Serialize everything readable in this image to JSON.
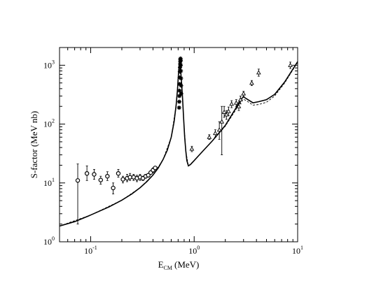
{
  "chart_data": {
    "type": "scatter",
    "xlabel": {
      "main": "E",
      "sub": "CM",
      "unit": "(MeV)"
    },
    "ylabel": "S-factor (MeV nb)",
    "xscale": "log",
    "yscale": "log",
    "xlim": [
      0.05,
      10
    ],
    "ylim": [
      1,
      2000
    ],
    "x_ticks": [
      {
        "value": 0.1,
        "base": "10",
        "exp": "-1"
      },
      {
        "value": 1,
        "base": "10",
        "exp": "0"
      },
      {
        "value": 10,
        "base": "10",
        "exp": "1"
      }
    ],
    "y_ticks": [
      {
        "value": 1,
        "base": "10",
        "exp": "0"
      },
      {
        "value": 10,
        "base": "10",
        "exp": "1"
      },
      {
        "value": 100,
        "base": "10",
        "exp": "2"
      },
      {
        "value": 1000,
        "base": "10",
        "exp": "3"
      }
    ],
    "grid": false,
    "legend": "none",
    "curves": [
      {
        "style": "solid",
        "points": [
          [
            0.05,
            1.85
          ],
          [
            0.07,
            2.2
          ],
          [
            0.1,
            2.85
          ],
          [
            0.15,
            3.9
          ],
          [
            0.2,
            5.1
          ],
          [
            0.25,
            6.5
          ],
          [
            0.3,
            8.3
          ],
          [
            0.35,
            10.6
          ],
          [
            0.4,
            13.6
          ],
          [
            0.45,
            18
          ],
          [
            0.5,
            25
          ],
          [
            0.55,
            36
          ],
          [
            0.6,
            60
          ],
          [
            0.64,
            110
          ],
          [
            0.67,
            210
          ],
          [
            0.69,
            380
          ],
          [
            0.705,
            700
          ],
          [
            0.715,
            1000
          ],
          [
            0.725,
            1100
          ],
          [
            0.735,
            950
          ],
          [
            0.75,
            600
          ],
          [
            0.77,
            300
          ],
          [
            0.79,
            130
          ],
          [
            0.81,
            60
          ],
          [
            0.83,
            35
          ],
          [
            0.85,
            24
          ],
          [
            0.88,
            19.5
          ],
          [
            0.92,
            20.5
          ],
          [
            1.0,
            24
          ],
          [
            1.2,
            34
          ],
          [
            1.5,
            52
          ],
          [
            2.0,
            95
          ],
          [
            2.5,
            180
          ],
          [
            2.8,
            260
          ],
          [
            3.0,
            290
          ],
          [
            3.3,
            260
          ],
          [
            3.7,
            230
          ],
          [
            4.2,
            240
          ],
          [
            5.0,
            260
          ],
          [
            6.0,
            320
          ],
          [
            7.5,
            520
          ],
          [
            10.0,
            1150
          ]
        ]
      },
      {
        "style": "dashed",
        "points": [
          [
            0.05,
            1.85
          ],
          [
            0.1,
            2.85
          ],
          [
            0.2,
            5.1
          ],
          [
            0.3,
            8.3
          ],
          [
            0.4,
            13.6
          ],
          [
            0.5,
            25
          ],
          [
            0.6,
            60
          ],
          [
            0.67,
            210
          ],
          [
            0.705,
            700
          ],
          [
            0.725,
            1100
          ],
          [
            0.75,
            600
          ],
          [
            0.79,
            130
          ],
          [
            0.83,
            35
          ],
          [
            0.88,
            19.5
          ],
          [
            1.0,
            24
          ],
          [
            1.5,
            52
          ],
          [
            2.0,
            92
          ],
          [
            2.5,
            170
          ],
          [
            2.8,
            240
          ],
          [
            3.0,
            265
          ],
          [
            3.3,
            240
          ],
          [
            3.7,
            210
          ],
          [
            4.2,
            215
          ],
          [
            5.0,
            235
          ],
          [
            6.0,
            300
          ],
          [
            7.5,
            500
          ],
          [
            10.0,
            1120
          ]
        ]
      }
    ],
    "series": [
      {
        "marker": "circle",
        "points": [
          {
            "x": 0.075,
            "y": 11,
            "ylo": 2,
            "yhi": 21
          },
          {
            "x": 0.092,
            "y": 14.5,
            "ylo": 11,
            "yhi": 19.5
          },
          {
            "x": 0.108,
            "y": 14,
            "ylo": 11.5,
            "yhi": 17
          },
          {
            "x": 0.125,
            "y": 11.2,
            "ylo": 9.5,
            "yhi": 13
          },
          {
            "x": 0.145,
            "y": 13,
            "ylo": 11,
            "yhi": 15.5
          },
          {
            "x": 0.165,
            "y": 8.2,
            "ylo": 6.5,
            "yhi": 10
          },
          {
            "x": 0.185,
            "y": 14.5,
            "ylo": 12.5,
            "yhi": 17
          },
          {
            "x": 0.205,
            "y": 11.5,
            "ylo": 10,
            "yhi": 13
          },
          {
            "x": 0.225,
            "y": 12,
            "ylo": 10.5,
            "yhi": 14
          },
          {
            "x": 0.24,
            "y": 12.5,
            "ylo": 11,
            "yhi": 14.5
          },
          {
            "x": 0.26,
            "y": 12.5,
            "ylo": 11,
            "yhi": 14
          },
          {
            "x": 0.28,
            "y": 12,
            "ylo": 10.5,
            "yhi": 13.5
          },
          {
            "x": 0.3,
            "y": 12.5,
            "ylo": 11,
            "yhi": 14
          },
          {
            "x": 0.32,
            "y": 12,
            "ylo": 11,
            "yhi": 13
          },
          {
            "x": 0.34,
            "y": 13,
            "ylo": 12,
            "yhi": 14
          },
          {
            "x": 0.36,
            "y": 13.5,
            "ylo": 12.5,
            "yhi": 14.5
          },
          {
            "x": 0.38,
            "y": 15,
            "ylo": 14,
            "yhi": 16
          },
          {
            "x": 0.4,
            "y": 16.5,
            "ylo": 15,
            "yhi": 18
          },
          {
            "x": 0.42,
            "y": 18,
            "ylo": 17,
            "yhi": 19
          }
        ]
      },
      {
        "marker": "star",
        "points": [
          {
            "x": 0.715,
            "y": 190
          },
          {
            "x": 0.718,
            "y": 240
          },
          {
            "x": 0.72,
            "y": 300
          },
          {
            "x": 0.722,
            "y": 370
          },
          {
            "x": 0.724,
            "y": 480
          },
          {
            "x": 0.726,
            "y": 620
          },
          {
            "x": 0.728,
            "y": 780
          },
          {
            "x": 0.73,
            "y": 920
          },
          {
            "x": 0.732,
            "y": 1050
          },
          {
            "x": 0.734,
            "y": 1150
          },
          {
            "x": 0.736,
            "y": 1250
          },
          {
            "x": 0.738,
            "y": 1300
          },
          {
            "x": 0.74,
            "y": 1200
          },
          {
            "x": 0.742,
            "y": 1000
          },
          {
            "x": 0.744,
            "y": 800
          },
          {
            "x": 0.746,
            "y": 600
          },
          {
            "x": 0.748,
            "y": 450
          },
          {
            "x": 0.75,
            "y": 330
          }
        ]
      },
      {
        "marker": "triangle",
        "points": [
          {
            "x": 0.95,
            "y": 38,
            "ylo": 34,
            "yhi": 42
          },
          {
            "x": 1.4,
            "y": 60,
            "ylo": 55,
            "yhi": 66
          },
          {
            "x": 1.6,
            "y": 70,
            "ylo": 60,
            "yhi": 80
          },
          {
            "x": 1.75,
            "y": 80,
            "ylo": 55,
            "yhi": 110
          },
          {
            "x": 1.85,
            "y": 110,
            "ylo": 30,
            "yhi": 200
          },
          {
            "x": 1.95,
            "y": 160,
            "ylo": 130,
            "yhi": 200
          },
          {
            "x": 2.05,
            "y": 145,
            "ylo": 120,
            "yhi": 170
          },
          {
            "x": 2.15,
            "y": 165,
            "ylo": 140,
            "yhi": 195
          },
          {
            "x": 2.3,
            "y": 220,
            "ylo": 190,
            "yhi": 250
          },
          {
            "x": 2.55,
            "y": 230,
            "ylo": 200,
            "yhi": 260
          },
          {
            "x": 2.7,
            "y": 200,
            "ylo": 170,
            "yhi": 230
          },
          {
            "x": 2.8,
            "y": 260,
            "ylo": 220,
            "yhi": 300
          },
          {
            "x": 3.0,
            "y": 330,
            "ylo": 300,
            "yhi": 360
          },
          {
            "x": 3.6,
            "y": 500,
            "ylo": 450,
            "yhi": 550
          },
          {
            "x": 4.2,
            "y": 750,
            "ylo": 650,
            "yhi": 860
          },
          {
            "x": 8.5,
            "y": 1000,
            "ylo": 880,
            "yhi": 1130
          }
        ]
      }
    ]
  }
}
